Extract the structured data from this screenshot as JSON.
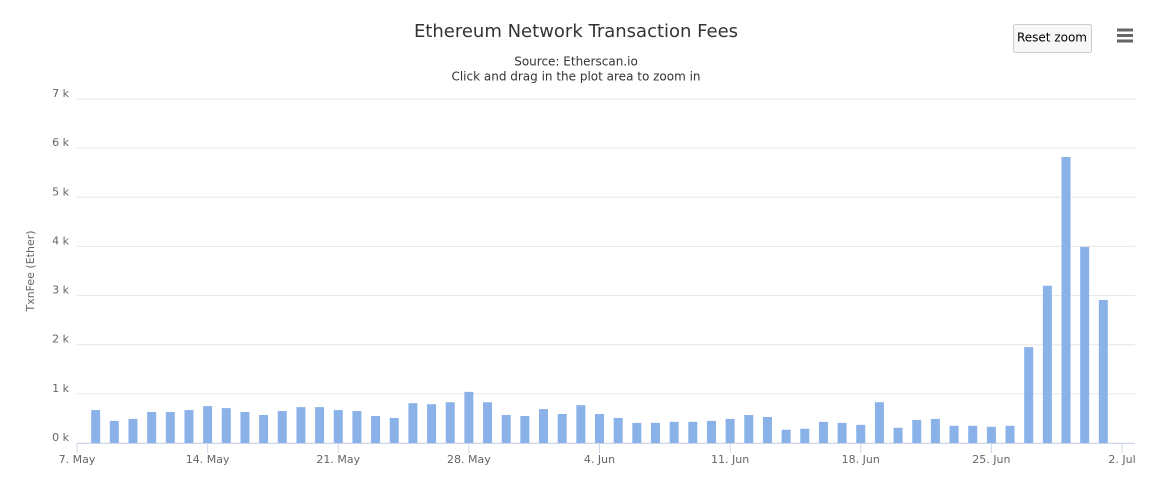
{
  "chart_data": {
    "type": "bar",
    "title": "Ethereum Network Transaction Fees",
    "subtitle": "Source: Etherscan.io",
    "hint": "Click and drag in the plot area to zoom in",
    "reset_button": "Reset zoom",
    "y_label": "TxnFee (Ether)",
    "color": "#8ab2e8",
    "grid": true,
    "x": [
      "05-08",
      "05-09",
      "05-10",
      "05-11",
      "05-12",
      "05-13",
      "05-14",
      "05-15",
      "05-16",
      "05-17",
      "05-18",
      "05-19",
      "05-20",
      "05-21",
      "05-22",
      "05-23",
      "05-24",
      "05-25",
      "05-26",
      "05-27",
      "05-28",
      "05-29",
      "05-30",
      "05-31",
      "06-01",
      "06-02",
      "06-03",
      "06-04",
      "06-05",
      "06-06",
      "06-07",
      "06-08",
      "06-09",
      "06-10",
      "06-11",
      "06-12",
      "06-13",
      "06-14",
      "06-15",
      "06-16",
      "06-17",
      "06-18",
      "06-19",
      "06-20",
      "06-21",
      "06-22",
      "06-23",
      "06-24",
      "06-25",
      "06-26",
      "06-27",
      "06-28",
      "06-29",
      "06-30",
      "07-01"
    ],
    "values": [
      670,
      450,
      490,
      630,
      630,
      670,
      750,
      710,
      630,
      570,
      650,
      730,
      730,
      670,
      650,
      550,
      510,
      810,
      790,
      830,
      1040,
      830,
      570,
      550,
      690,
      590,
      770,
      590,
      510,
      410,
      410,
      430,
      430,
      450,
      490,
      570,
      530,
      270,
      290,
      430,
      410,
      370,
      830,
      310,
      470,
      490,
      350,
      350,
      330,
      350,
      1950,
      3200,
      5820,
      3990,
      2910
    ],
    "xlim": [
      "05-07",
      "07-02"
    ],
    "xticks": [
      {
        "value": "05-07",
        "label": "7. May"
      },
      {
        "value": "05-14",
        "label": "14. May"
      },
      {
        "value": "05-21",
        "label": "21. May"
      },
      {
        "value": "05-28",
        "label": "28. May"
      },
      {
        "value": "06-04",
        "label": "4. Jun"
      },
      {
        "value": "06-11",
        "label": "11. Jun"
      },
      {
        "value": "06-18",
        "label": "18. Jun"
      },
      {
        "value": "06-25",
        "label": "25. Jun"
      },
      {
        "value": "07-02",
        "label": "2. Jul"
      }
    ],
    "ylim": [
      0,
      7000
    ],
    "yticks": [
      {
        "value": 0,
        "label": "0 k"
      },
      {
        "value": 1000,
        "label": "1 k"
      },
      {
        "value": 2000,
        "label": "2 k"
      },
      {
        "value": 3000,
        "label": "3 k"
      },
      {
        "value": 4000,
        "label": "4 k"
      },
      {
        "value": 5000,
        "label": "5 k"
      },
      {
        "value": 6000,
        "label": "6 k"
      },
      {
        "value": 7000,
        "label": "7 k"
      }
    ]
  }
}
